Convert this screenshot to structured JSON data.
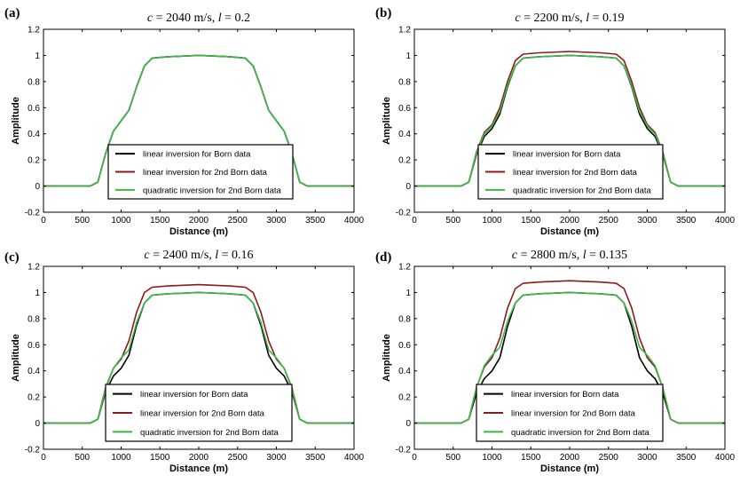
{
  "chart_data": [
    {
      "type": "line",
      "panel_label": "(a)",
      "title_parts": [
        "c",
        " = 2040  m/s, ",
        "l",
        " = 0.2"
      ],
      "xlabel": "Distance (m)",
      "ylabel": "Amplitude",
      "xlim": [
        0,
        4000
      ],
      "ylim": [
        -0.2,
        1.2
      ],
      "xticks": [
        0,
        500,
        1000,
        1500,
        2000,
        2500,
        3000,
        3500,
        4000
      ],
      "yticks": [
        -0.2,
        0,
        0.2,
        0.4,
        0.6,
        0.8,
        1,
        1.2
      ],
      "ytick_labels": [
        "-0.2",
        "0",
        "0.2",
        "0.4",
        "0.6",
        "0.8",
        "1",
        "1.2"
      ],
      "grid": false,
      "legend_position": "bottom-center",
      "series": [
        {
          "name": "linear inversion for Born data",
          "color": "#000000",
          "x": [
            0,
            600,
            700,
            800,
            900,
            1000,
            1100,
            1200,
            1300,
            1400,
            1600,
            2000,
            2400,
            2600,
            2700,
            2800,
            2900,
            3000,
            3100,
            3200,
            3300,
            3400,
            4000
          ],
          "y": [
            0.0,
            0.0,
            0.03,
            0.25,
            0.42,
            0.5,
            0.58,
            0.76,
            0.92,
            0.98,
            0.99,
            1.0,
            0.99,
            0.98,
            0.92,
            0.76,
            0.58,
            0.5,
            0.42,
            0.25,
            0.03,
            0.0,
            0.0
          ]
        },
        {
          "name": "linear inversion for 2nd Born data",
          "color": "#8b1a1a",
          "x": [
            0,
            600,
            700,
            800,
            900,
            1000,
            1100,
            1200,
            1300,
            1400,
            1600,
            2000,
            2400,
            2600,
            2700,
            2800,
            2900,
            3000,
            3100,
            3200,
            3300,
            3400,
            4000
          ],
          "y": [
            0.0,
            0.0,
            0.03,
            0.25,
            0.42,
            0.5,
            0.58,
            0.76,
            0.92,
            0.98,
            0.99,
            1.0,
            0.99,
            0.98,
            0.92,
            0.76,
            0.58,
            0.5,
            0.42,
            0.25,
            0.03,
            0.0,
            0.0
          ]
        },
        {
          "name": "quadratic inversion for 2nd Born data",
          "color": "#3cb84a",
          "x": [
            0,
            600,
            700,
            800,
            900,
            1000,
            1100,
            1200,
            1300,
            1400,
            1600,
            2000,
            2400,
            2600,
            2700,
            2800,
            2900,
            3000,
            3100,
            3200,
            3300,
            3400,
            4000
          ],
          "y": [
            0.0,
            0.0,
            0.03,
            0.25,
            0.42,
            0.5,
            0.58,
            0.76,
            0.92,
            0.98,
            0.99,
            1.0,
            0.99,
            0.98,
            0.92,
            0.76,
            0.58,
            0.5,
            0.42,
            0.25,
            0.03,
            0.0,
            0.0
          ]
        }
      ]
    },
    {
      "type": "line",
      "panel_label": "(b)",
      "title_parts": [
        "c",
        " = 2200  m/s, ",
        "l",
        " = 0.19"
      ],
      "xlabel": "Distance (m)",
      "ylabel": "Amplitude",
      "xlim": [
        0,
        4000
      ],
      "ylim": [
        -0.2,
        1.2
      ],
      "xticks": [
        0,
        500,
        1000,
        1500,
        2000,
        2500,
        3000,
        3500,
        4000
      ],
      "yticks": [
        -0.2,
        0,
        0.2,
        0.4,
        0.6,
        0.8,
        1,
        1.2
      ],
      "ytick_labels": [
        "-0.2",
        "0",
        "0.2",
        "0.4",
        "0.6",
        "0.8",
        "1",
        "1.2"
      ],
      "grid": false,
      "legend_position": "bottom-center",
      "series": [
        {
          "name": "linear inversion for Born data",
          "color": "#000000",
          "x": [
            0,
            600,
            700,
            800,
            900,
            1000,
            1100,
            1200,
            1300,
            1400,
            1600,
            2000,
            2400,
            2600,
            2700,
            2800,
            2900,
            3000,
            3100,
            3200,
            3300,
            3400,
            4000
          ],
          "y": [
            0.0,
            0.0,
            0.03,
            0.24,
            0.38,
            0.44,
            0.55,
            0.76,
            0.92,
            0.98,
            0.99,
            1.0,
            0.99,
            0.98,
            0.92,
            0.76,
            0.55,
            0.44,
            0.38,
            0.24,
            0.03,
            0.0,
            0.0
          ]
        },
        {
          "name": "linear inversion for 2nd Born data",
          "color": "#8b1a1a",
          "x": [
            0,
            600,
            700,
            800,
            900,
            1000,
            1100,
            1200,
            1300,
            1400,
            1600,
            2000,
            2400,
            2600,
            2700,
            2800,
            2900,
            3000,
            3100,
            3200,
            3300,
            3400,
            4000
          ],
          "y": [
            0.0,
            0.0,
            0.03,
            0.26,
            0.41,
            0.47,
            0.6,
            0.8,
            0.96,
            1.01,
            1.02,
            1.03,
            1.02,
            1.01,
            0.96,
            0.8,
            0.6,
            0.47,
            0.41,
            0.26,
            0.03,
            0.0,
            0.0
          ]
        },
        {
          "name": "quadratic inversion for 2nd Born data",
          "color": "#3cb84a",
          "x": [
            0,
            600,
            700,
            800,
            900,
            1000,
            1100,
            1200,
            1300,
            1400,
            1600,
            2000,
            2400,
            2600,
            2700,
            2800,
            2900,
            3000,
            3100,
            3200,
            3300,
            3400,
            4000
          ],
          "y": [
            0.0,
            0.0,
            0.03,
            0.25,
            0.4,
            0.46,
            0.57,
            0.77,
            0.92,
            0.98,
            0.99,
            1.0,
            0.99,
            0.98,
            0.92,
            0.77,
            0.57,
            0.46,
            0.4,
            0.25,
            0.03,
            0.0,
            0.0
          ]
        }
      ]
    },
    {
      "type": "line",
      "panel_label": "(c)",
      "title_parts": [
        "c",
        " = 2400  m/s, ",
        "l",
        " = 0.16"
      ],
      "xlabel": "Distance (m)",
      "ylabel": "Amplitude",
      "xlim": [
        0,
        4000
      ],
      "ylim": [
        -0.2,
        1.2
      ],
      "xticks": [
        0,
        500,
        1000,
        1500,
        2000,
        2500,
        3000,
        3500,
        4000
      ],
      "yticks": [
        -0.2,
        0,
        0.2,
        0.4,
        0.6,
        0.8,
        1,
        1.2
      ],
      "ytick_labels": [
        "-0.2",
        "0",
        "0.2",
        "0.4",
        "0.6",
        "0.8",
        "1",
        "1.2"
      ],
      "grid": false,
      "legend_position": "bottom-center",
      "series": [
        {
          "name": "linear inversion for Born data",
          "color": "#000000",
          "x": [
            0,
            600,
            700,
            800,
            900,
            1000,
            1100,
            1200,
            1300,
            1400,
            1600,
            2000,
            2400,
            2600,
            2700,
            2800,
            2900,
            3000,
            3100,
            3200,
            3300,
            3400,
            4000
          ],
          "y": [
            0.0,
            0.0,
            0.03,
            0.24,
            0.36,
            0.42,
            0.52,
            0.75,
            0.92,
            0.98,
            0.99,
            1.0,
            0.99,
            0.98,
            0.92,
            0.75,
            0.52,
            0.42,
            0.36,
            0.24,
            0.03,
            0.0,
            0.0
          ]
        },
        {
          "name": "linear inversion for 2nd Born data",
          "color": "#8b1a1a",
          "x": [
            0,
            600,
            700,
            800,
            900,
            1000,
            1100,
            1200,
            1300,
            1400,
            1600,
            2000,
            2400,
            2600,
            2700,
            2800,
            2900,
            3000,
            3100,
            3200,
            3300,
            3400,
            4000
          ],
          "y": [
            0.0,
            0.0,
            0.03,
            0.27,
            0.42,
            0.49,
            0.63,
            0.85,
            1.0,
            1.04,
            1.05,
            1.06,
            1.05,
            1.04,
            1.0,
            0.85,
            0.63,
            0.49,
            0.42,
            0.27,
            0.03,
            0.0,
            0.0
          ]
        },
        {
          "name": "quadratic inversion for 2nd Born data",
          "color": "#3cb84a",
          "x": [
            0,
            600,
            700,
            800,
            900,
            1000,
            1100,
            1200,
            1300,
            1400,
            1600,
            2000,
            2400,
            2600,
            2700,
            2800,
            2900,
            3000,
            3100,
            3200,
            3300,
            3400,
            4000
          ],
          "y": [
            0.0,
            0.0,
            0.03,
            0.26,
            0.42,
            0.5,
            0.56,
            0.77,
            0.92,
            0.98,
            0.99,
            1.0,
            0.99,
            0.98,
            0.92,
            0.77,
            0.56,
            0.5,
            0.42,
            0.26,
            0.03,
            0.0,
            0.0
          ]
        }
      ]
    },
    {
      "type": "line",
      "panel_label": "(d)",
      "title_parts": [
        "c",
        " = 2800  m/s, ",
        "l",
        " = 0.135"
      ],
      "xlabel": "Distance (m)",
      "ylabel": "Amplitude",
      "xlim": [
        0,
        4000
      ],
      "ylim": [
        -0.2,
        1.2
      ],
      "xticks": [
        0,
        500,
        1000,
        1500,
        2000,
        2500,
        3000,
        3500,
        4000
      ],
      "yticks": [
        -0.2,
        0,
        0.2,
        0.4,
        0.6,
        0.8,
        1,
        1.2
      ],
      "ytick_labels": [
        "-0.2",
        "0",
        "0.2",
        "0.4",
        "0.6",
        "0.8",
        "1",
        "1.2"
      ],
      "grid": false,
      "legend_position": "bottom-center",
      "series": [
        {
          "name": "linear inversion for Born data",
          "color": "#000000",
          "x": [
            0,
            600,
            700,
            800,
            900,
            1000,
            1100,
            1200,
            1300,
            1400,
            1600,
            2000,
            2400,
            2600,
            2700,
            2800,
            2900,
            3000,
            3100,
            3200,
            3300,
            3400,
            4000
          ],
          "y": [
            0.0,
            0.0,
            0.03,
            0.23,
            0.34,
            0.4,
            0.5,
            0.74,
            0.92,
            0.98,
            0.99,
            1.0,
            0.99,
            0.98,
            0.92,
            0.74,
            0.5,
            0.4,
            0.34,
            0.23,
            0.03,
            0.0,
            0.0
          ]
        },
        {
          "name": "linear inversion for 2nd Born data",
          "color": "#8b1a1a",
          "x": [
            0,
            600,
            700,
            800,
            900,
            1000,
            1100,
            1200,
            1300,
            1400,
            1600,
            2000,
            2400,
            2600,
            2700,
            2800,
            2900,
            3000,
            3100,
            3200,
            3300,
            3400,
            4000
          ],
          "y": [
            0.0,
            0.0,
            0.03,
            0.27,
            0.43,
            0.5,
            0.65,
            0.88,
            1.03,
            1.07,
            1.08,
            1.09,
            1.08,
            1.07,
            1.03,
            0.88,
            0.65,
            0.5,
            0.43,
            0.27,
            0.03,
            0.0,
            0.0
          ]
        },
        {
          "name": "quadratic inversion for 2nd Born data",
          "color": "#3cb84a",
          "x": [
            0,
            600,
            700,
            800,
            900,
            1000,
            1100,
            1200,
            1300,
            1400,
            1600,
            2000,
            2400,
            2600,
            2700,
            2800,
            2900,
            3000,
            3100,
            3200,
            3300,
            3400,
            4000
          ],
          "y": [
            0.0,
            0.0,
            0.03,
            0.27,
            0.44,
            0.52,
            0.58,
            0.78,
            0.92,
            0.98,
            0.99,
            1.0,
            0.99,
            0.98,
            0.92,
            0.78,
            0.58,
            0.52,
            0.44,
            0.27,
            0.03,
            0.0,
            0.0
          ]
        }
      ]
    }
  ]
}
